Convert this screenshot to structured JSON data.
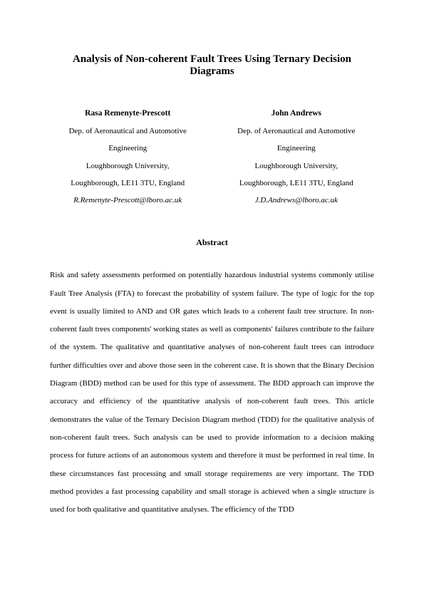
{
  "title": "Analysis of Non-coherent Fault Trees Using Ternary Decision Diagrams",
  "authors": [
    {
      "name": "Rasa Remenyte-Prescott",
      "dept": "Dep. of Aeronautical and Automotive Engineering",
      "university": "Loughborough University,",
      "address": "Loughborough, LE11 3TU, England",
      "email": "R.Remenyte-Prescott@lboro.ac.uk"
    },
    {
      "name": "John Andrews",
      "dept": "Dep. of Aeronautical and Automotive Engineering",
      "university": "Loughborough University,",
      "address": "Loughborough, LE11 3TU, England",
      "email": "J.D.Andrews@lboro.ac.uk"
    }
  ],
  "abstract_heading": "Abstract",
  "abstract_body": "Risk and safety assessments performed on potentially hazardous industrial systems commonly utilise Fault Tree Analysis (FTA) to forecast the probability of system failure. The type of logic for the top event is usually limited to AND and OR gates which leads to a coherent fault tree structure. In non-coherent fault trees components' working states as well as components' failures contribute to the failure of the system. The qualitative and quantitative analyses of non-coherent fault trees can introduce  further difficulties over and above those seen in the coherent case. It is shown that the Binary Decision Diagram (BDD) method can be used for this type of assessment. The BDD approach can improve the accuracy and efficiency of the quantitative analysis of non-coherent fault trees. This article demonstrates the value of the Ternary Decision Diagram method (TDD) for the qualitative analysis of non-coherent fault trees. Such analysis can be used to provide information to a decision making process for future actions of an autonomous system and therefore it must be performed in real time. In these circumstances fast processing and small storage requirements are very important. The TDD method provides a fast processing capability and small storage is achieved when a single structure is used for both qualitative and quantitative analyses. The efficiency of the TDD"
}
